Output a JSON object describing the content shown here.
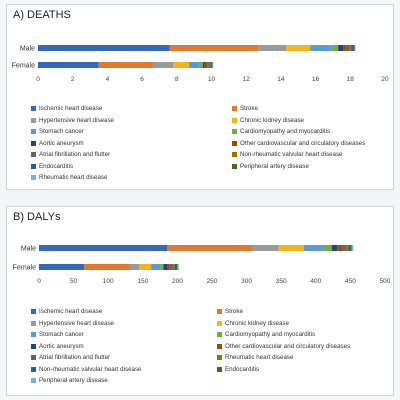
{
  "chart_data": [
    {
      "type": "bar",
      "orientation": "horizontal",
      "stacked": true,
      "title": "A) DEATHS",
      "categories": [
        "Male",
        "Female"
      ],
      "xlim": [
        0,
        20
      ],
      "xticks": [
        0,
        2,
        4,
        6,
        8,
        10,
        12,
        14,
        16,
        18,
        20
      ],
      "grid": false,
      "legend_position": "bottom",
      "series": [
        {
          "name": "Ischemic heart disease",
          "color": "#3568b7",
          "values": [
            7.6,
            3.5
          ]
        },
        {
          "name": "Stroke",
          "color": "#e07a2f",
          "values": [
            5.1,
            3.1
          ]
        },
        {
          "name": "Hypertensive heart disease",
          "color": "#9a9a9a",
          "values": [
            1.6,
            1.2
          ]
        },
        {
          "name": "Chronic kidney disease",
          "color": "#f2b51e",
          "values": [
            1.4,
            0.9
          ]
        },
        {
          "name": "Stomach cancer",
          "color": "#5b9bd5",
          "values": [
            1.2,
            0.6
          ]
        },
        {
          "name": "Cardiomyopathy and myocarditis",
          "color": "#70ad47",
          "values": [
            0.4,
            0.2
          ]
        },
        {
          "name": "Aortic aneurysm",
          "color": "#264478",
          "values": [
            0.3,
            0.1
          ]
        },
        {
          "name": "Other cardiovascular and circulatory diseases",
          "color": "#9e480e",
          "values": [
            0.2,
            0.15
          ]
        },
        {
          "name": "Atrial fibrillation and flutter",
          "color": "#636363",
          "values": [
            0.15,
            0.1
          ]
        },
        {
          "name": "Non-rheumatic valvular heart disease",
          "color": "#997300",
          "values": [
            0.1,
            0.1
          ]
        },
        {
          "name": "Endocarditis",
          "color": "#255e91",
          "values": [
            0.1,
            0.05
          ]
        },
        {
          "name": "Peripheral artery disease",
          "color": "#43682b",
          "values": [
            0.1,
            0.05
          ]
        },
        {
          "name": "Rheumatic heart disease",
          "color": "#7cafdd",
          "values": [
            0.05,
            0.05
          ]
        }
      ]
    },
    {
      "type": "bar",
      "orientation": "horizontal",
      "stacked": true,
      "title": "B) DALYs",
      "categories": [
        "Male",
        "Female"
      ],
      "xlim": [
        0,
        500
      ],
      "xticks": [
        0,
        50,
        100,
        150,
        200,
        250,
        300,
        350,
        400,
        450,
        500
      ],
      "grid": false,
      "legend_position": "bottom",
      "series": [
        {
          "name": "Ischemic heart disease",
          "color": "#3568b7",
          "values": [
            185,
            65
          ]
        },
        {
          "name": "Stroke",
          "color": "#e07a2f",
          "values": [
            123,
            65
          ]
        },
        {
          "name": "Hypertensive heart disease",
          "color": "#9a9a9a",
          "values": [
            38,
            15
          ]
        },
        {
          "name": "Chronic kidney disease",
          "color": "#f2b51e",
          "values": [
            37,
            17
          ]
        },
        {
          "name": "Stomach cancer",
          "color": "#5b9bd5",
          "values": [
            28,
            13
          ]
        },
        {
          "name": "Cardiomyopathy and myocarditis",
          "color": "#70ad47",
          "values": [
            12,
            5
          ]
        },
        {
          "name": "Aortic aneurysm",
          "color": "#264478",
          "values": [
            8,
            5
          ]
        },
        {
          "name": "Other cardiovascular and circulatory diseases",
          "color": "#9e480e",
          "values": [
            7,
            4
          ]
        },
        {
          "name": "Atrial fibrillation and flutter",
          "color": "#636363",
          "values": [
            5,
            4
          ]
        },
        {
          "name": "Rheumatic heart disease",
          "color": "#997300",
          "values": [
            4,
            3
          ]
        },
        {
          "name": "Non-rheumatic valvular heart disease",
          "color": "#255e91",
          "values": [
            3,
            2
          ]
        },
        {
          "name": "Endocarditis",
          "color": "#43682b",
          "values": [
            2,
            2
          ]
        },
        {
          "name": "Peripheral artery disease",
          "color": "#7cafdd",
          "values": [
            2,
            2
          ]
        }
      ]
    }
  ]
}
